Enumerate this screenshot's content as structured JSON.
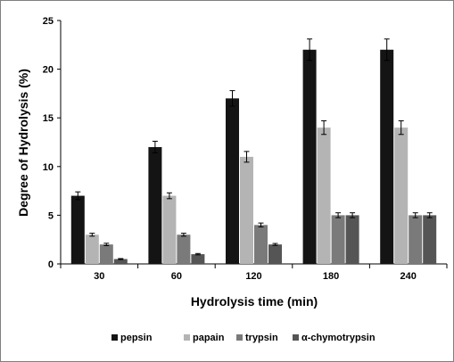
{
  "chart_data": {
    "type": "bar",
    "title": "",
    "xlabel": "Hydrolysis time  (min)",
    "ylabel": "Degree of Hydrolysis (%)",
    "categories": [
      "30",
      "60",
      "120",
      "180",
      "240"
    ],
    "ylim": [
      0,
      25
    ],
    "yticks": [
      0,
      5,
      10,
      15,
      20,
      25
    ],
    "grid": false,
    "legend_position": "bottom",
    "series": [
      {
        "name": "pepsin",
        "color": "#141414",
        "values": [
          7,
          12,
          17,
          22,
          22
        ],
        "errors": [
          0.4,
          0.6,
          0.8,
          1.1,
          1.1
        ]
      },
      {
        "name": "papain",
        "color": "#b4b4b4",
        "values": [
          3,
          7,
          11,
          14,
          14
        ],
        "errors": [
          0.15,
          0.3,
          0.55,
          0.7,
          0.7
        ]
      },
      {
        "name": "trypsin",
        "color": "#7a7a7a",
        "values": [
          2,
          3,
          4,
          5,
          5
        ],
        "errors": [
          0.12,
          0.15,
          0.2,
          0.25,
          0.25
        ]
      },
      {
        "name": "α-chymotrypsin",
        "color": "#555555",
        "values": [
          0.5,
          1,
          2,
          5,
          5
        ],
        "errors": [
          0.05,
          0.07,
          0.1,
          0.25,
          0.25
        ]
      }
    ]
  }
}
